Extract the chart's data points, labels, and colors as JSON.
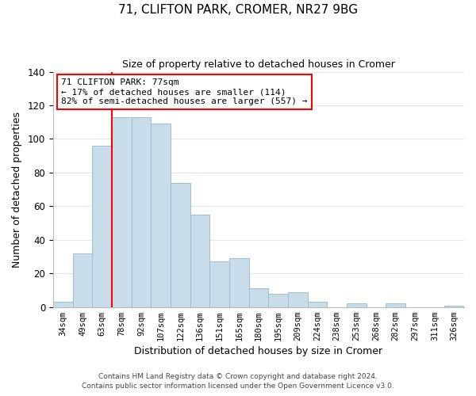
{
  "title": "71, CLIFTON PARK, CROMER, NR27 9BG",
  "subtitle": "Size of property relative to detached houses in Cromer",
  "xlabel": "Distribution of detached houses by size in Cromer",
  "ylabel": "Number of detached properties",
  "bar_color": "#c8dcea",
  "bar_edge_color": "#a0bccc",
  "bins": [
    "34sqm",
    "49sqm",
    "63sqm",
    "78sqm",
    "92sqm",
    "107sqm",
    "122sqm",
    "136sqm",
    "151sqm",
    "165sqm",
    "180sqm",
    "195sqm",
    "209sqm",
    "224sqm",
    "238sqm",
    "253sqm",
    "268sqm",
    "282sqm",
    "297sqm",
    "311sqm",
    "326sqm"
  ],
  "values": [
    3,
    32,
    96,
    113,
    113,
    109,
    74,
    55,
    27,
    29,
    11,
    8,
    9,
    3,
    0,
    2,
    0,
    2,
    0,
    0,
    1
  ],
  "ylim": [
    0,
    140
  ],
  "yticks": [
    0,
    20,
    40,
    60,
    80,
    100,
    120,
    140
  ],
  "property_line_label": "71 CLIFTON PARK: 77sqm",
  "annotation_line1": "← 17% of detached houses are smaller (114)",
  "annotation_line2": "82% of semi-detached houses are larger (557) →",
  "footer1": "Contains HM Land Registry data © Crown copyright and database right 2024.",
  "footer2": "Contains public sector information licensed under the Open Government Licence v3.0.",
  "background_color": "#ffffff",
  "grid_color": "#dde8f0"
}
